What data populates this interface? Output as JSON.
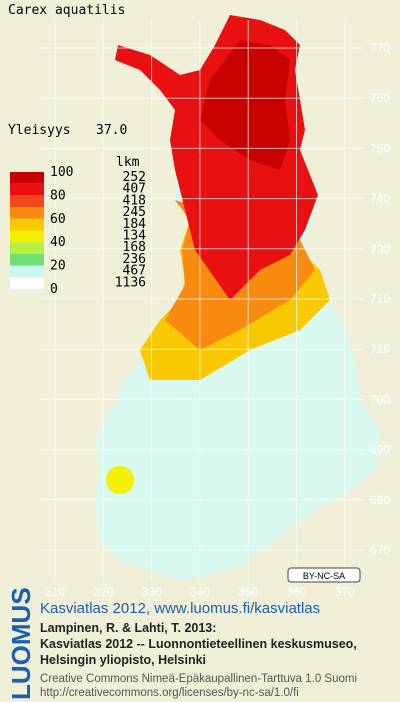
{
  "title": "Carex aquatilis",
  "frequency": {
    "label": "Yleisyys",
    "value": "37.0"
  },
  "legend": {
    "scale": [
      "100",
      "80",
      "60",
      "40",
      "20",
      "0"
    ],
    "count_header": "lkm",
    "counts": [
      "252",
      "407",
      "418",
      "245",
      "184",
      "134",
      "168",
      "236",
      "467",
      "1136"
    ],
    "colors": [
      "#c80000",
      "#e81010",
      "#f04818",
      "#f88a10",
      "#f8c800",
      "#f0f000",
      "#b8f040",
      "#70e070",
      "#c8f8f0",
      "#ffffff"
    ]
  },
  "grid": {
    "y_labels": [
      "770",
      "760",
      "750",
      "740",
      "730",
      "720",
      "710",
      "700",
      "690",
      "680",
      "670"
    ],
    "x_labels": [
      "310",
      "320",
      "330",
      "340",
      "350",
      "360",
      "370"
    ]
  },
  "license_badge": "BY-NC-SA",
  "footer": {
    "heading": "Kasviatlas 2012, www.luomus.fi/kasviatlas",
    "citation": [
      "Lampinen, R. & Lahti, T. 2013:",
      "Kasviatlas 2012 -- Luonnontieteellinen keskusmuseo,",
      "Helsingin yliopisto, Helsinki"
    ],
    "license": [
      "Creative Commons Nimeä-Epäkaupallinen-Tarttuva 1.0 Suomi",
      "http://creativecommons.org/licenses/by-nc-sa/1.0/fi"
    ]
  },
  "logo": "LUOMUS"
}
